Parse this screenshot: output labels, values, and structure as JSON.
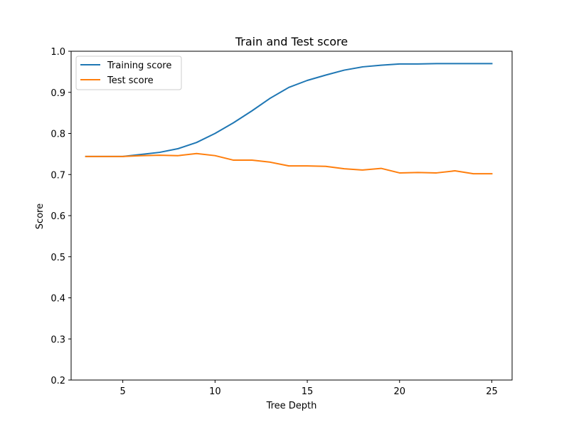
{
  "chart_data": {
    "type": "line",
    "title": "Train and Test score",
    "xlabel": "Tree Depth",
    "ylabel": "Score",
    "xlim": [
      2.2,
      26.1
    ],
    "ylim": [
      0.2,
      1.0
    ],
    "xticks": [
      5,
      10,
      15,
      20,
      25
    ],
    "yticks": [
      0.2,
      0.3,
      0.4,
      0.5,
      0.6,
      0.7,
      0.8,
      0.9,
      1.0
    ],
    "grid": false,
    "legend": "top-left",
    "x": [
      3,
      4,
      5,
      6,
      7,
      8,
      9,
      10,
      11,
      12,
      13,
      14,
      15,
      16,
      17,
      18,
      19,
      20,
      21,
      22,
      23,
      24,
      25
    ],
    "series": [
      {
        "name": "Training score",
        "color": "#1f77b4",
        "values": [
          0.744,
          0.744,
          0.744,
          0.749,
          0.754,
          0.763,
          0.778,
          0.8,
          0.826,
          0.855,
          0.886,
          0.912,
          0.929,
          0.942,
          0.954,
          0.962,
          0.966,
          0.969,
          0.969,
          0.97,
          0.97,
          0.97,
          0.97
        ]
      },
      {
        "name": "Test score",
        "color": "#ff7f0e",
        "values": [
          0.744,
          0.744,
          0.744,
          0.746,
          0.747,
          0.746,
          0.751,
          0.746,
          0.735,
          0.735,
          0.73,
          0.721,
          0.721,
          0.72,
          0.714,
          0.711,
          0.715,
          0.704,
          0.705,
          0.704,
          0.709,
          0.702,
          0.702
        ]
      }
    ]
  }
}
